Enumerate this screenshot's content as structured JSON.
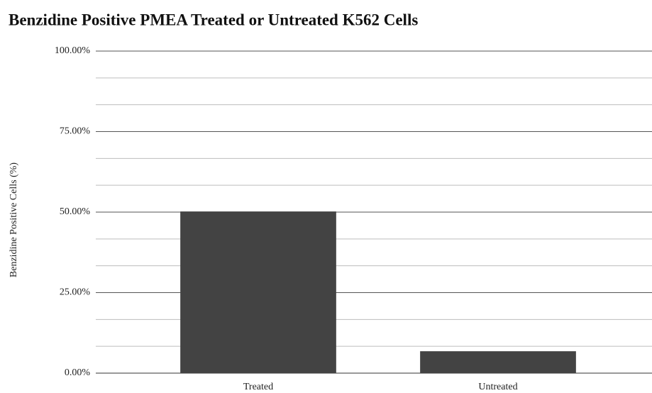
{
  "chart_data": {
    "type": "bar",
    "title": "Benzidine Positive PMEA Treated or Untreated K562 Cells",
    "y_label": "Benzidine Positive Cells (%)",
    "categories": [
      "Treated",
      "Untreated"
    ],
    "values": [
      50.2,
      6.8
    ],
    "color": "#434343",
    "ylim": [
      0,
      100
    ],
    "yticks": [
      {
        "value": 0,
        "label": "0.00%"
      },
      {
        "value": 25,
        "label": "25.00%"
      },
      {
        "value": 50,
        "label": "50.00%"
      },
      {
        "value": 75,
        "label": "75.00%"
      },
      {
        "value": 100,
        "label": "100.00%"
      }
    ],
    "minor_yticks": [
      8.33,
      16.67,
      33.33,
      41.67,
      58.33,
      66.67,
      83.33,
      91.67
    ],
    "grid": true
  }
}
